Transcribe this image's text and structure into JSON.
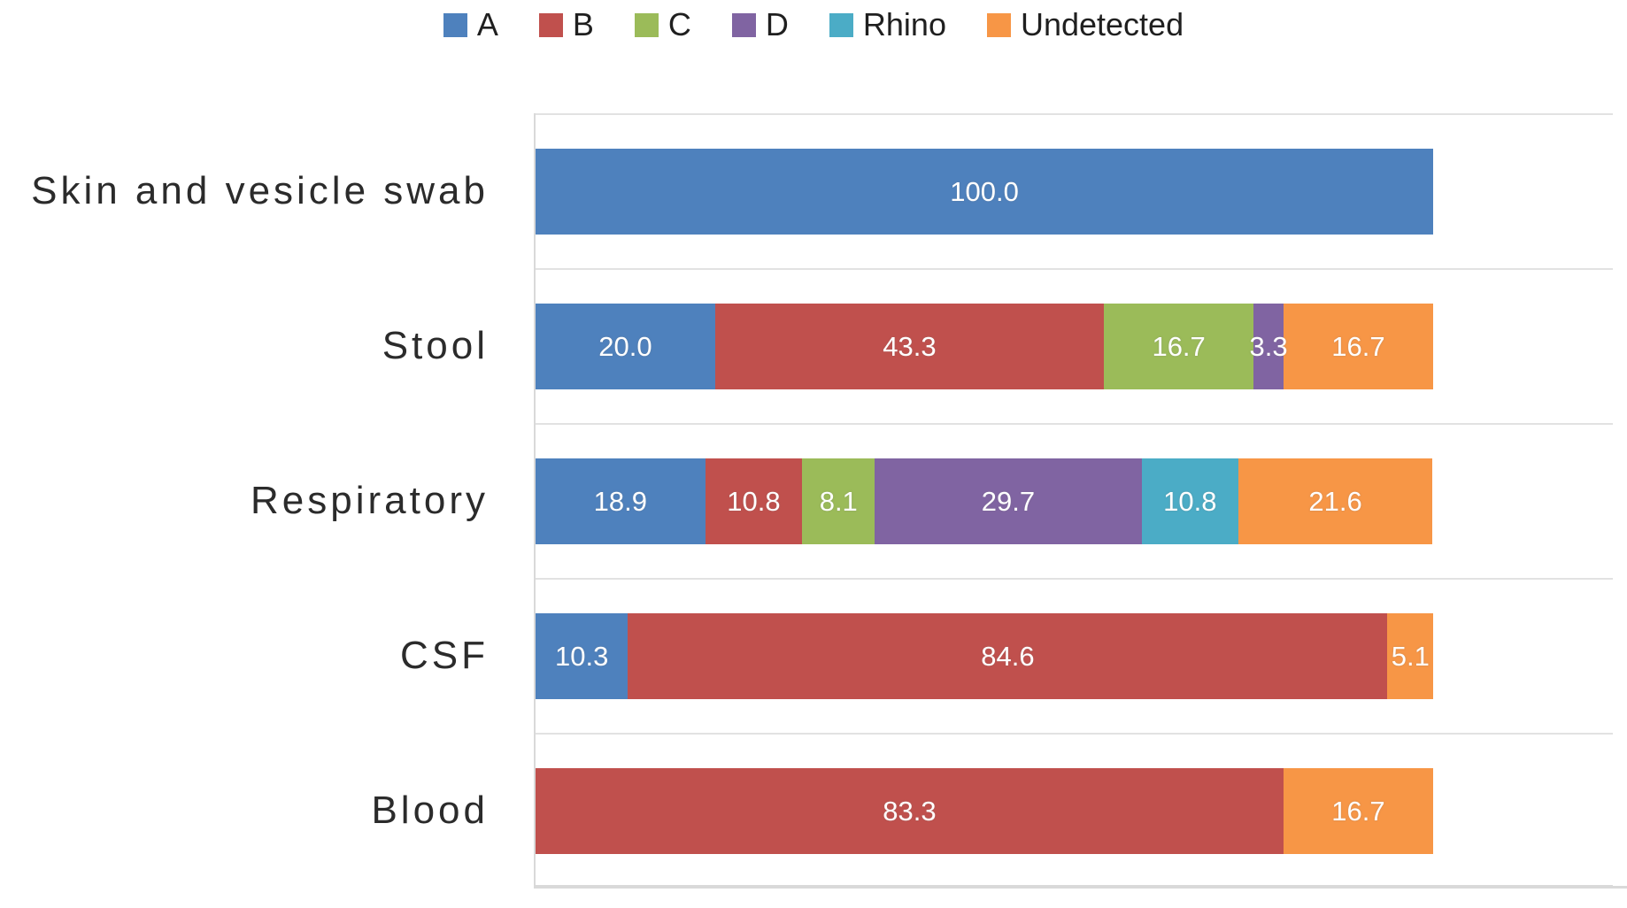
{
  "chart_data": {
    "type": "bar",
    "orientation": "horizontal",
    "stacked": true,
    "title": "",
    "xlabel": "",
    "ylabel": "",
    "xlim": [
      0,
      120
    ],
    "grid": "category-boundary horizontal gridlines, light gray",
    "legend_position": "top-center",
    "value_label_style": "white, one decimal, centered in segment",
    "categories": [
      "Skin and vesicle swab",
      "Stool",
      "Respiratory",
      "CSF",
      "Blood"
    ],
    "series": [
      {
        "name": "A",
        "color": "#4e81bd",
        "values": [
          100.0,
          20.0,
          18.9,
          10.3,
          0
        ]
      },
      {
        "name": "B",
        "color": "#c0504d",
        "values": [
          0,
          43.3,
          10.8,
          84.6,
          83.3
        ]
      },
      {
        "name": "C",
        "color": "#9bbb59",
        "values": [
          0,
          16.7,
          8.1,
          0,
          0
        ]
      },
      {
        "name": "D",
        "color": "#8064a2",
        "values": [
          0,
          3.3,
          29.7,
          0,
          0
        ]
      },
      {
        "name": "Rhino",
        "color": "#4bacc6",
        "values": [
          0,
          0,
          10.8,
          0,
          0
        ]
      },
      {
        "name": "Undetected",
        "color": "#f79646",
        "values": [
          0,
          16.7,
          21.6,
          5.1,
          16.7
        ]
      }
    ],
    "colors": {
      "gridline": "#e2e2e2",
      "axis_line": "#d9d9d9",
      "legend_text": "#1f1f1f",
      "category_text": "#2b2b2b",
      "value_text": "#ffffff",
      "background": "#ffffff"
    }
  }
}
